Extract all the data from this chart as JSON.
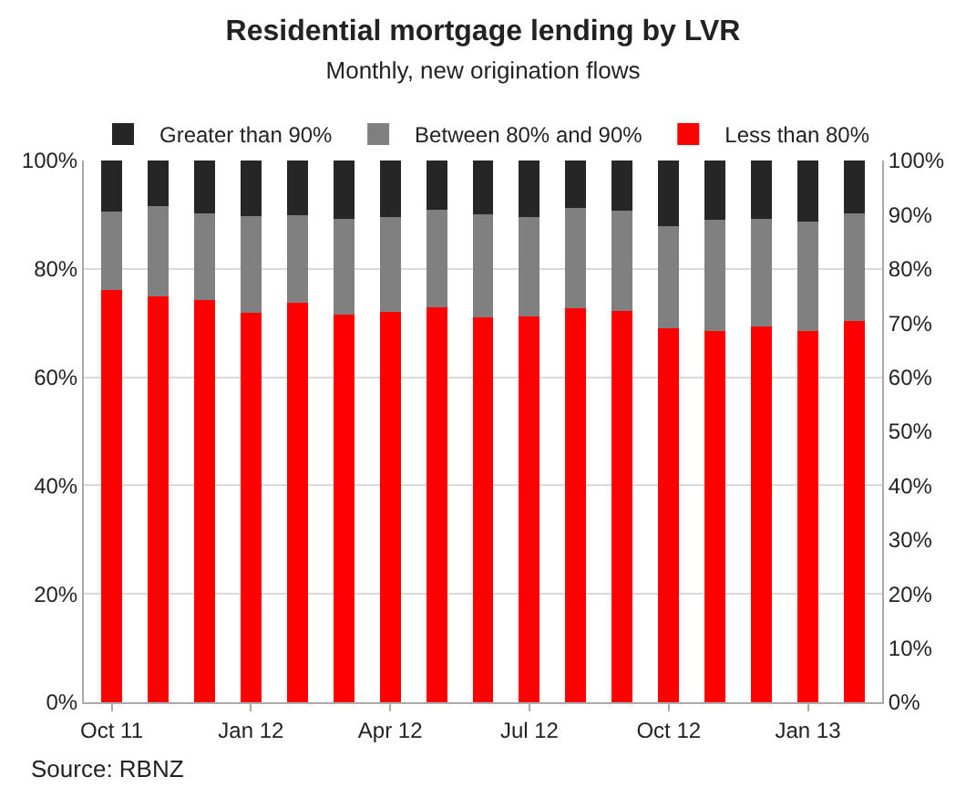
{
  "chart_data": {
    "type": "bar",
    "title": "Residential mortgage lending by LVR",
    "subtitle": "Monthly, new origination flows",
    "categories": [
      "Oct 11",
      null,
      null,
      "Jan 12",
      null,
      null,
      "Apr 12",
      null,
      null,
      "Jul 12",
      null,
      null,
      "Oct 12",
      null,
      null,
      "Jan 13",
      null
    ],
    "stacked": true,
    "series": [
      {
        "name": "Less than 80%",
        "color": "#ff0000",
        "values": [
          76.1,
          74.9,
          74.2,
          71.9,
          73.8,
          71.6,
          72.1,
          72.9,
          71.0,
          71.2,
          72.7,
          72.3,
          69.1,
          68.6,
          69.4,
          68.6,
          70.3
        ]
      },
      {
        "name": "Between 80% and 90%",
        "color": "#808080",
        "values": [
          14.5,
          16.7,
          16.0,
          17.8,
          16.1,
          17.6,
          17.5,
          18.0,
          19.0,
          18.4,
          18.6,
          18.4,
          18.8,
          20.4,
          19.9,
          20.2,
          19.9
        ]
      },
      {
        "name": "Greater than 90%",
        "color": "#262626",
        "values": [
          9.4,
          8.4,
          9.8,
          10.3,
          10.1,
          10.8,
          10.4,
          9.1,
          10.0,
          10.4,
          8.7,
          9.3,
          12.1,
          11.0,
          10.7,
          11.2,
          9.8
        ]
      }
    ],
    "ylim": [
      0,
      100
    ],
    "yticks": [
      {
        "value": 0,
        "label": "0%"
      },
      {
        "value": 20,
        "label": "20%"
      },
      {
        "value": 40,
        "label": "40%"
      },
      {
        "value": 60,
        "label": "60%"
      },
      {
        "value": 80,
        "label": "80%"
      },
      {
        "value": 100,
        "label": "100%"
      }
    ],
    "y2lim": [
      0,
      100
    ],
    "y2ticks": [
      {
        "value": 0,
        "label": "0%"
      },
      {
        "value": 10,
        "label": "10%"
      },
      {
        "value": 20,
        "label": "20%"
      },
      {
        "value": 30,
        "label": "30%"
      },
      {
        "value": 40,
        "label": "40%"
      },
      {
        "value": 50,
        "label": "50%"
      },
      {
        "value": 60,
        "label": "60%"
      },
      {
        "value": 70,
        "label": "70%"
      },
      {
        "value": 80,
        "label": "80%"
      },
      {
        "value": 90,
        "label": "90%"
      },
      {
        "value": 100,
        "label": "100%"
      }
    ],
    "grid": "y",
    "legend": "top",
    "annotations": [
      "Source: RBNZ"
    ]
  }
}
